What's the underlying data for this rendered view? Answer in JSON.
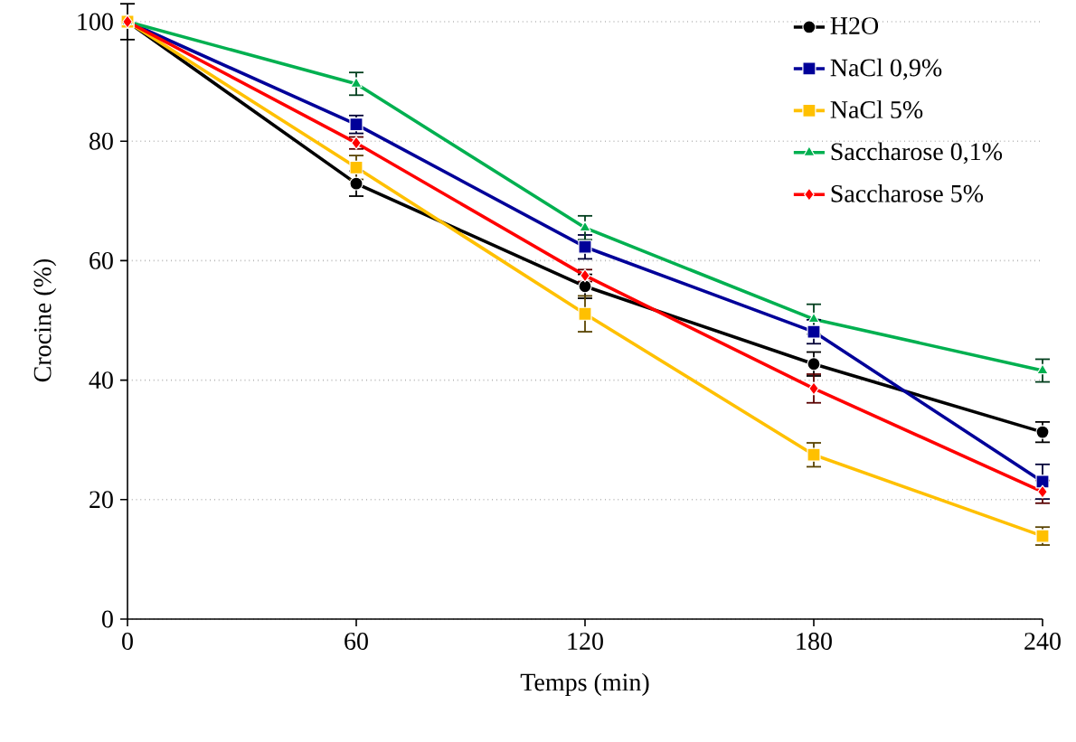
{
  "chart_data": {
    "type": "line",
    "xlabel": "Temps (min)",
    "ylabel": "Crocine (%)",
    "x": [
      0,
      60,
      120,
      180,
      240
    ],
    "xlim": [
      0,
      240
    ],
    "xticks": [
      0,
      60,
      120,
      180,
      240
    ],
    "ylim": [
      0,
      100
    ],
    "yticks": [
      0,
      20,
      40,
      60,
      80,
      100
    ],
    "grid": "y",
    "legend": "top right",
    "series": [
      {
        "name": "H2O",
        "color": "#000000",
        "marker": "circle",
        "values": [
          100,
          72.9,
          55.7,
          42.7,
          31.3
        ],
        "errors": [
          3,
          2.1,
          2,
          2,
          1.7
        ]
      },
      {
        "name": "NaCl 0,9%",
        "color": "#000099",
        "marker": "square",
        "values": [
          100,
          82.8,
          62.3,
          48.1,
          23.0
        ],
        "errors": [
          null,
          1.5,
          2,
          2,
          2.9
        ]
      },
      {
        "name": "NaCl 5%",
        "color": "#ffc000",
        "marker": "square",
        "values": [
          100,
          75.6,
          51.1,
          27.5,
          13.9
        ],
        "errors": [
          null,
          2,
          3,
          2,
          1.5
        ]
      },
      {
        "name": "Saccharose 0,1%",
        "color": "#00b050",
        "marker": "triangle",
        "values": [
          100,
          89.6,
          65.5,
          50.2,
          41.6
        ],
        "errors": [
          null,
          1.9,
          2,
          2.5,
          1.9
        ]
      },
      {
        "name": "Saccharose 5%",
        "color": "#ff0000",
        "marker": "diamond",
        "values": [
          100,
          79.7,
          57.5,
          38.6,
          21.3
        ],
        "errors": [
          null,
          1,
          1,
          2.4,
          1.9
        ]
      }
    ]
  }
}
